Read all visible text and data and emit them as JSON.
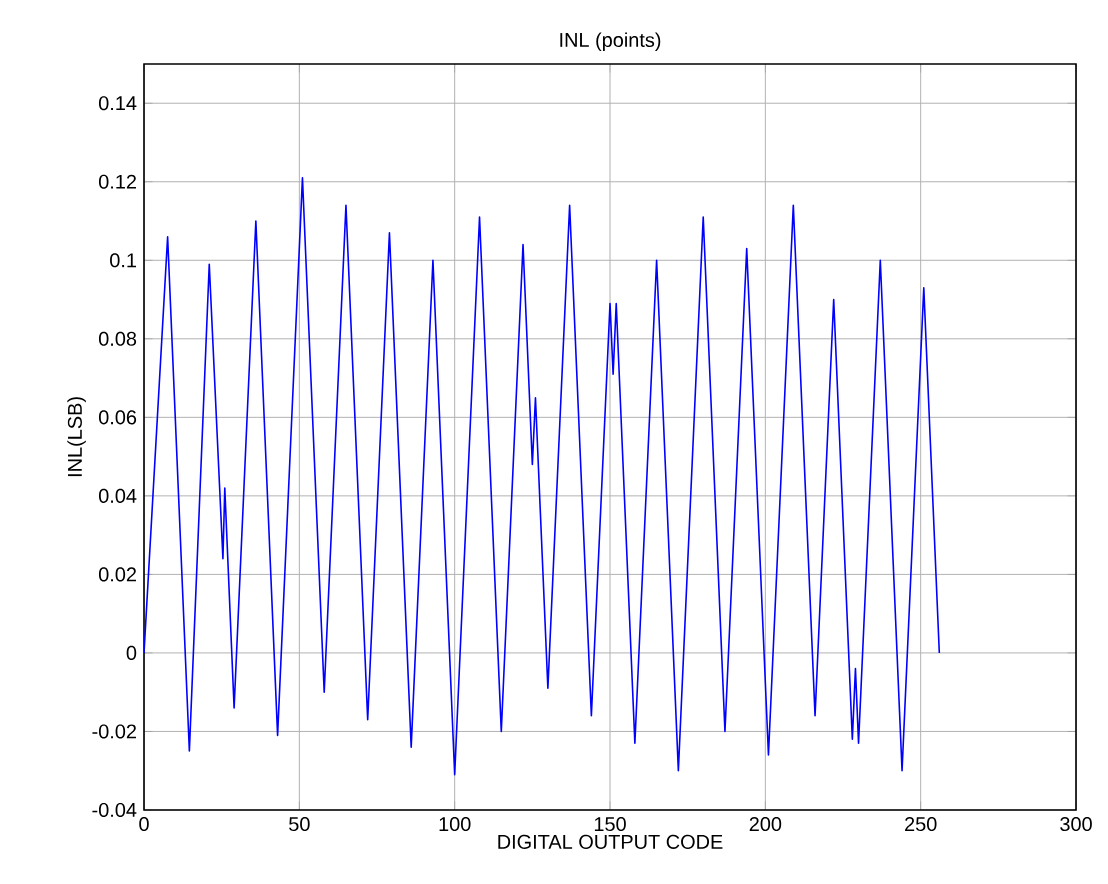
{
  "chart_data": {
    "type": "line",
    "title": "INL (points)",
    "xlabel": "DIGITAL OUTPUT CODE",
    "ylabel": "INL(LSB)",
    "xlim": [
      0,
      300
    ],
    "xticks": [
      0,
      50,
      100,
      150,
      200,
      250,
      300
    ],
    "ylim": [
      -0.04,
      0.15
    ],
    "yticks": [
      -0.04,
      -0.02,
      0,
      0.02,
      0.04,
      0.06,
      0.08,
      0.1,
      0.12,
      0.14
    ],
    "grid": true,
    "marker": "none",
    "line_style": "solid",
    "series": [
      {
        "color": "#0000ff",
        "x": [
          0,
          7.6,
          14.6,
          21,
          25.4,
          26,
          29,
          36,
          43,
          51,
          58,
          65,
          72,
          79,
          86,
          93,
          100,
          108,
          115,
          122,
          125,
          126,
          130,
          137,
          144,
          150,
          151,
          152,
          158,
          165,
          172,
          180,
          187,
          194,
          201,
          209,
          216,
          222,
          228,
          229,
          230,
          237,
          244,
          251,
          256
        ],
        "values": [
          0,
          0.106,
          -0.025,
          0.099,
          0.024,
          0.042,
          -0.014,
          0.11,
          -0.021,
          0.121,
          -0.01,
          0.114,
          -0.017,
          0.107,
          -0.024,
          0.1,
          -0.031,
          0.111,
          -0.02,
          0.104,
          0.048,
          0.065,
          -0.009,
          0.114,
          -0.016,
          0.089,
          0.071,
          0.089,
          -0.023,
          0.1,
          -0.03,
          0.111,
          -0.02,
          0.103,
          -0.026,
          0.114,
          -0.016,
          0.09,
          -0.022,
          -0.004,
          -0.023,
          0.1,
          -0.03,
          0.093,
          0
        ]
      }
    ]
  }
}
